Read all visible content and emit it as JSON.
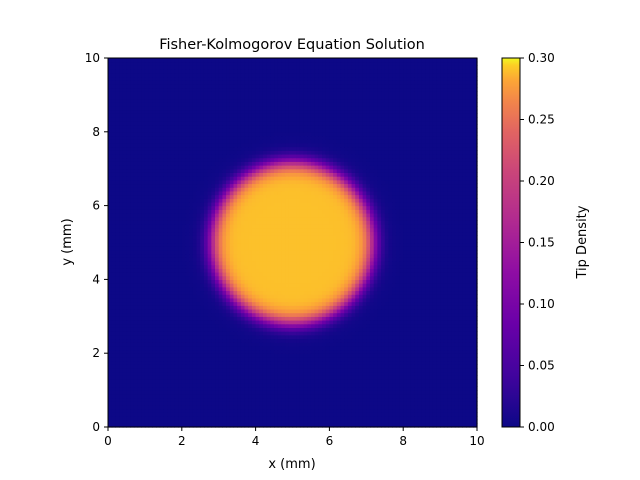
{
  "chart_data": {
    "type": "heatmap",
    "title": "Fisher-Kolmogorov Equation Solution",
    "xlabel": "x (mm)",
    "ylabel": "y (mm)",
    "xlim": [
      0,
      10
    ],
    "ylim": [
      0,
      10
    ],
    "x_ticks": [
      0,
      2,
      4,
      6,
      8,
      10
    ],
    "y_ticks": [
      0,
      2,
      4,
      6,
      8,
      10
    ],
    "colormap": "plasma",
    "colorbar": {
      "label": "Tip Density",
      "vmin": 0.0,
      "vmax": 0.3,
      "ticks": [
        "0.00",
        "0.05",
        "0.10",
        "0.15",
        "0.20",
        "0.25",
        "0.30"
      ]
    },
    "field": {
      "description_values": "radially symmetric front",
      "center": [
        5.0,
        5.0
      ],
      "front_radius": 2.2,
      "front_width": 0.12,
      "inside_value": 0.29,
      "outside_value": 0.0,
      "grid_resolution": 100
    },
    "grid": false
  }
}
